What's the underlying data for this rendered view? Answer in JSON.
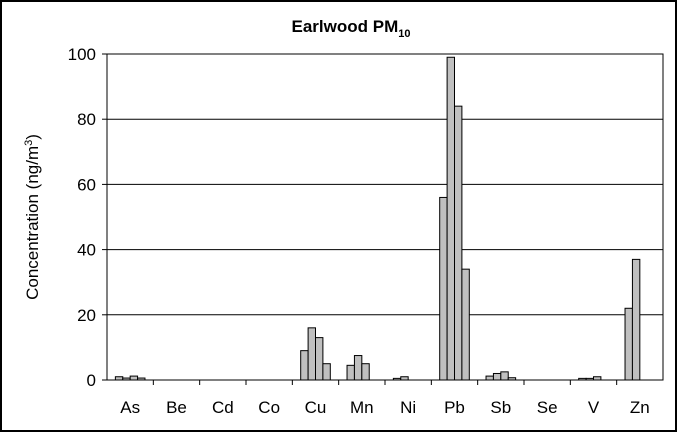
{
  "chart_data": {
    "type": "bar",
    "title": "Earlwood PM",
    "title_subscript": "10",
    "ylabel": "Concentration (ng/m",
    "ylabel_superscript": "3",
    "ylabel_suffix": ")",
    "xlabel": "",
    "ylim": [
      0,
      100
    ],
    "yticks": [
      0,
      20,
      40,
      60,
      80,
      100
    ],
    "grid": true,
    "legend": "none",
    "bar_color": "#c0c0c0",
    "categories": [
      "As",
      "Be",
      "Cd",
      "Co",
      "Cu",
      "Mn",
      "Ni",
      "Pb",
      "Sb",
      "Se",
      "V",
      "Zn"
    ],
    "series": [
      {
        "values": [
          1.0,
          0,
          0,
          0,
          9.0,
          4.5,
          0.5,
          56.0,
          1.2,
          0,
          0.5,
          22.0
        ]
      },
      {
        "values": [
          0.6,
          0,
          0,
          0,
          16.0,
          7.5,
          1.0,
          99.0,
          2.0,
          0,
          0.5,
          37.0
        ]
      },
      {
        "values": [
          1.2,
          0,
          0,
          0,
          13.0,
          5.0,
          0,
          84.0,
          2.5,
          0,
          1.0,
          0
        ]
      },
      {
        "values": [
          0.6,
          0,
          0,
          0,
          5.0,
          0,
          0,
          34.0,
          0.7,
          0,
          0,
          0
        ]
      }
    ]
  }
}
